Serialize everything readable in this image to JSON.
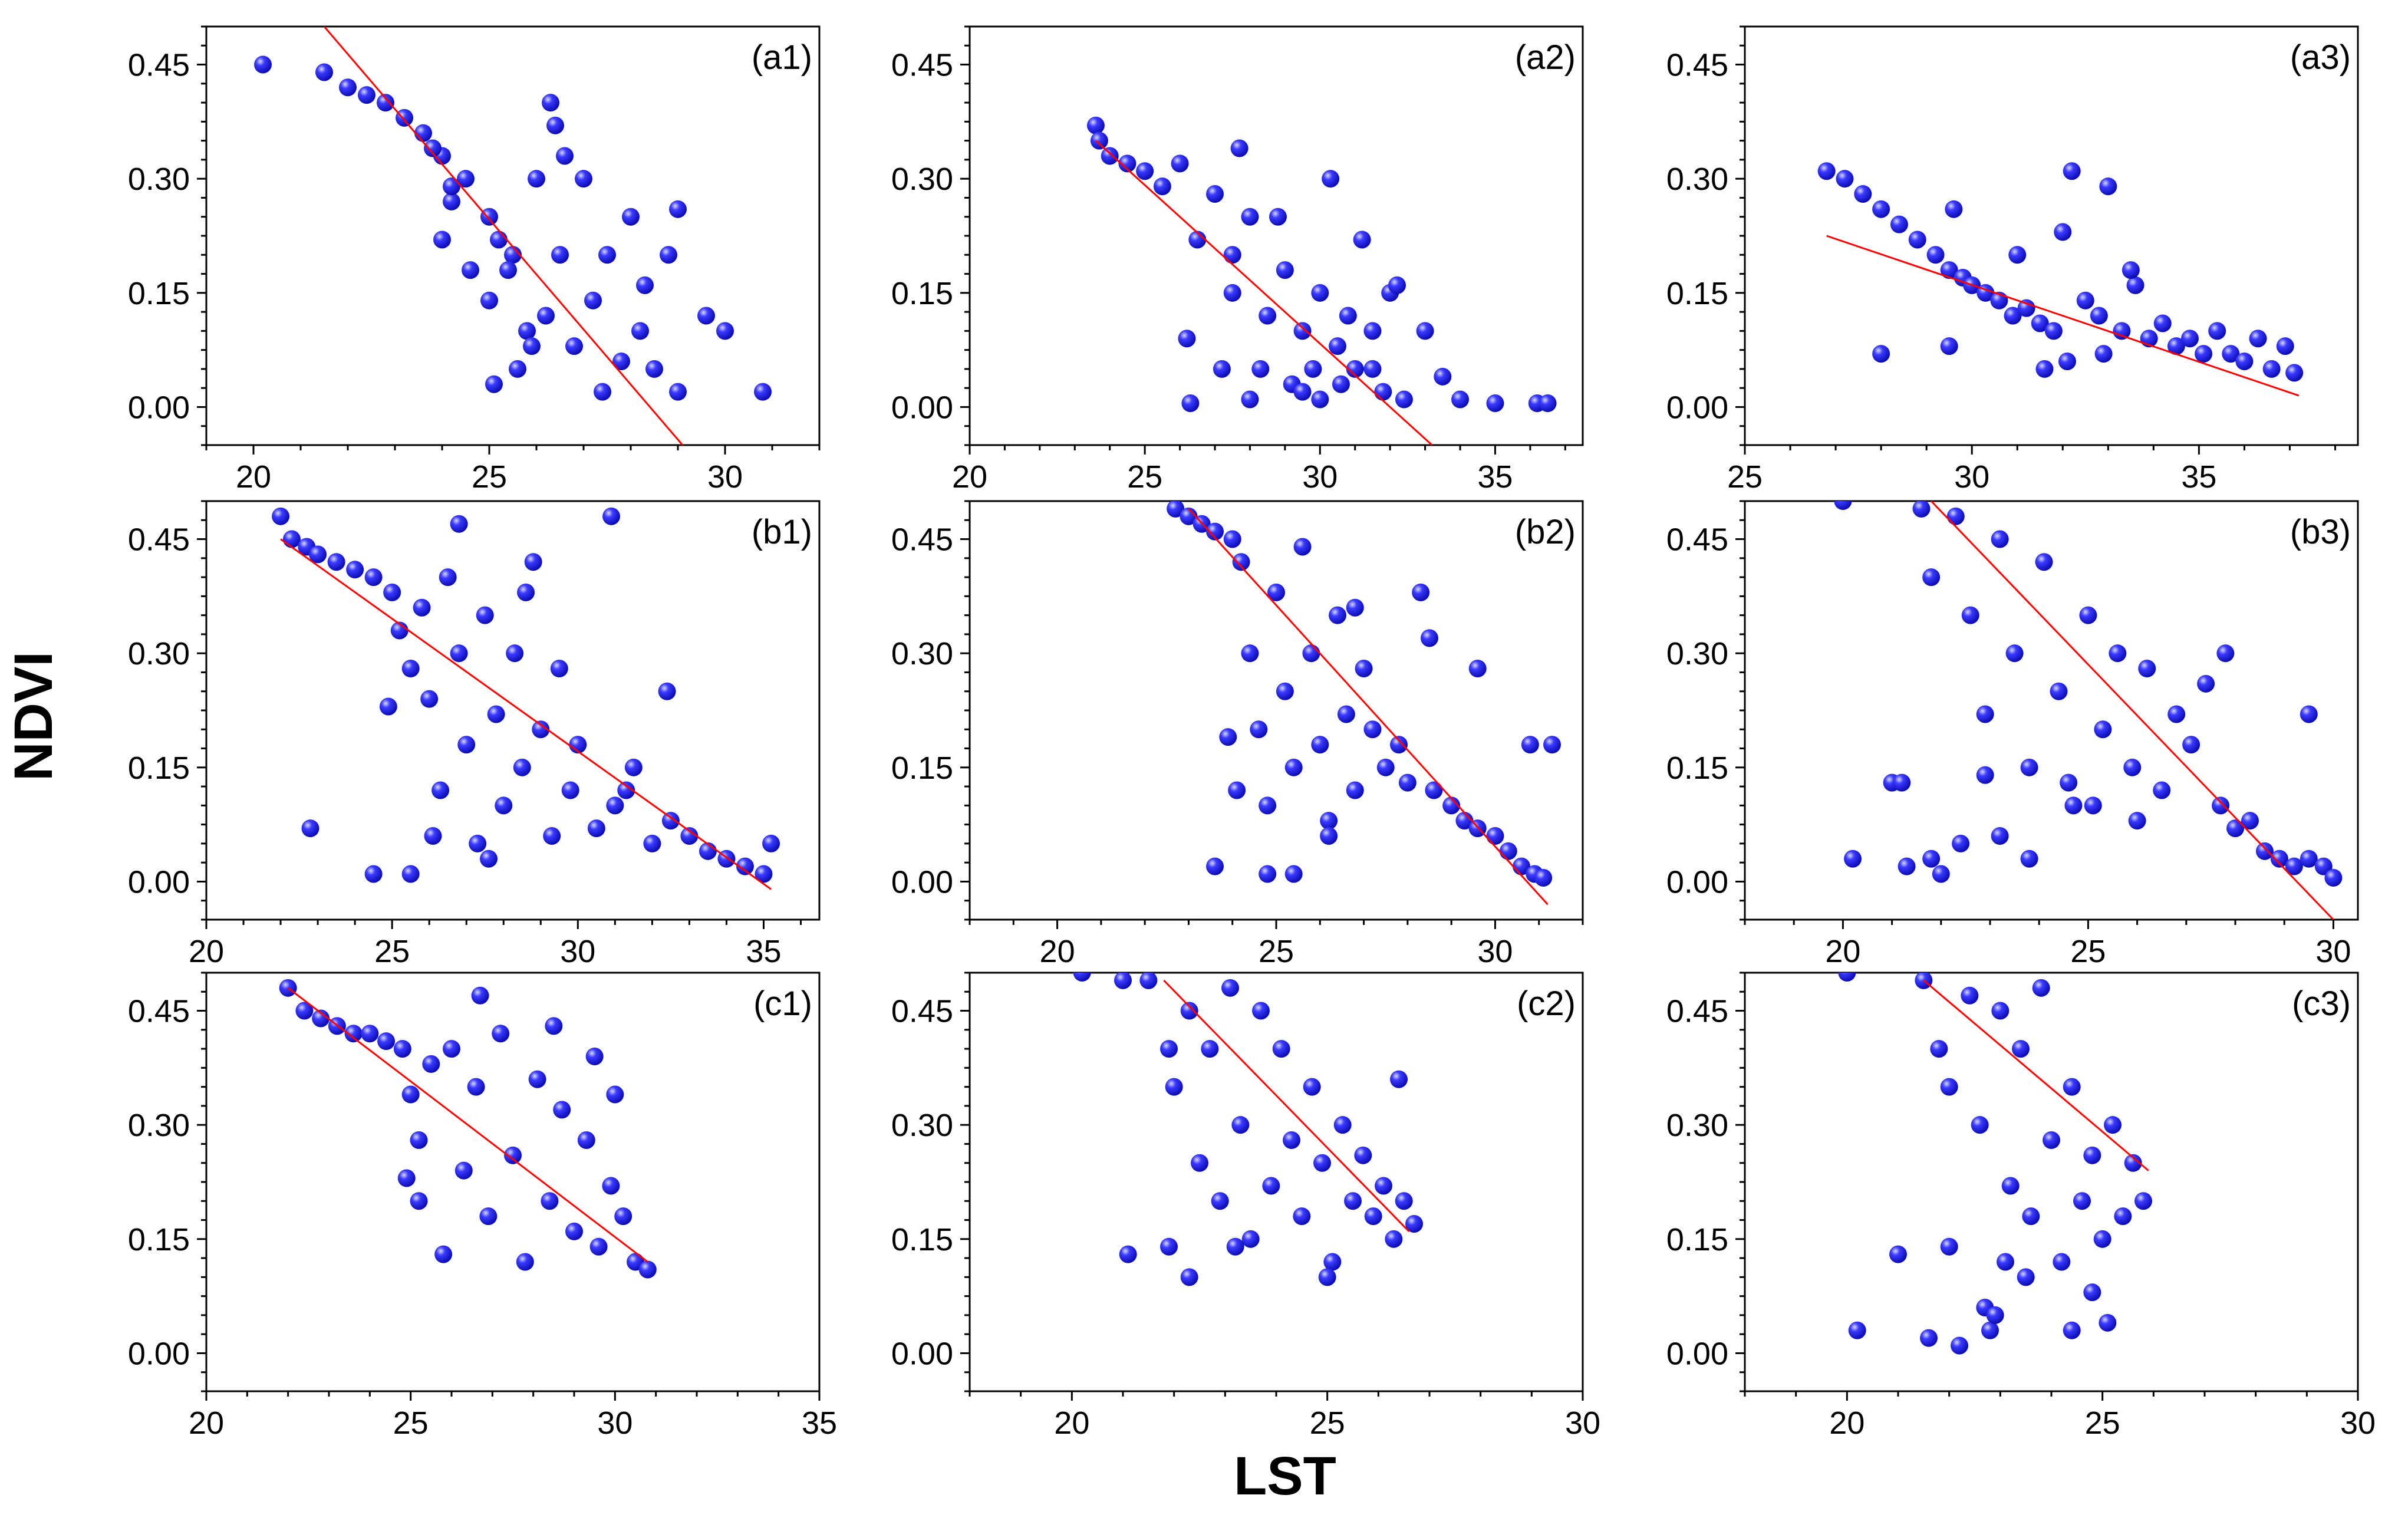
{
  "figure": {
    "ylabel": "NDVI",
    "xlabel": "LST",
    "colors": {
      "points": "#1a1ae6",
      "point_highlight": "#d8d8ff",
      "fit_line": "#ff0000",
      "axes": "#000000"
    }
  },
  "chart_data": [
    {
      "type": "scatter",
      "label": "(a1)",
      "xlim": [
        19,
        32
      ],
      "ylim": [
        -0.05,
        0.5
      ],
      "xticks": [
        20,
        25,
        30
      ],
      "xtick_labels": [
        "20",
        "25",
        "30"
      ],
      "yticks": [
        0,
        0.15,
        0.3,
        0.45
      ],
      "ytick_labels": [
        "0.00",
        "0.15",
        "0.30",
        "0.45"
      ],
      "fit": {
        "x": [
          21.5,
          29.1
        ],
        "y": [
          0.5,
          -0.05
        ]
      },
      "points": {
        "x": [
          20.2,
          21.5,
          22.0,
          22.4,
          22.8,
          23.2,
          23.6,
          24.0,
          24.2,
          24.5,
          24.6,
          25.0,
          25.2,
          25.5,
          25.8,
          26.0,
          26.2,
          26.3,
          26.5,
          26.8,
          27.0,
          27.2,
          27.5,
          27.8,
          28.0,
          28.2,
          28.5,
          28.8,
          29.0,
          29.6,
          30.0,
          30.8,
          24.0,
          24.2,
          25.0,
          25.1,
          25.9,
          26.4,
          23.8,
          25.4,
          25.6,
          26.6,
          27.4,
          28.3,
          29.0
        ],
        "y": [
          0.45,
          0.44,
          0.42,
          0.41,
          0.4,
          0.38,
          0.36,
          0.33,
          0.27,
          0.3,
          0.18,
          0.25,
          0.22,
          0.2,
          0.1,
          0.3,
          0.12,
          0.4,
          0.2,
          0.08,
          0.3,
          0.14,
          0.2,
          0.06,
          0.25,
          0.1,
          0.05,
          0.2,
          0.26,
          0.12,
          0.1,
          0.02,
          0.22,
          0.29,
          0.14,
          0.03,
          0.08,
          0.37,
          0.34,
          0.18,
          0.05,
          0.33,
          0.02,
          0.16,
          0.02
        ]
      }
    },
    {
      "type": "scatter",
      "label": "(a2)",
      "xlim": [
        20,
        37.5
      ],
      "ylim": [
        -0.05,
        0.5
      ],
      "xticks": [
        20,
        25,
        30,
        35
      ],
      "xtick_labels": [
        "20",
        "25",
        "30",
        "35"
      ],
      "yticks": [
        0,
        0.15,
        0.3,
        0.45
      ],
      "ytick_labels": [
        "0.00",
        "0.15",
        "0.30",
        "0.45"
      ],
      "fit": {
        "x": [
          23.6,
          33.2
        ],
        "y": [
          0.35,
          -0.05
        ]
      },
      "points": {
        "x": [
          23.6,
          23.7,
          24.0,
          24.5,
          25.0,
          25.5,
          26.0,
          26.2,
          26.3,
          26.5,
          27.0,
          27.2,
          27.5,
          27.7,
          28.0,
          28.3,
          28.5,
          28.8,
          29.0,
          29.2,
          29.5,
          29.8,
          30.0,
          30.3,
          30.5,
          30.6,
          30.8,
          31.0,
          31.2,
          31.5,
          31.8,
          32.0,
          32.4,
          33.0,
          33.5,
          34.0,
          35.0,
          36.2,
          36.5,
          27.5,
          28.0,
          29.5,
          30.0,
          31.5,
          32.2
        ],
        "y": [
          0.37,
          0.35,
          0.33,
          0.32,
          0.31,
          0.29,
          0.32,
          0.09,
          0.005,
          0.22,
          0.28,
          0.05,
          0.15,
          0.34,
          0.25,
          0.05,
          0.12,
          0.25,
          0.18,
          0.03,
          0.1,
          0.05,
          0.15,
          0.3,
          0.08,
          0.03,
          0.12,
          0.05,
          0.22,
          0.1,
          0.02,
          0.15,
          0.01,
          0.1,
          0.04,
          0.01,
          0.005,
          0.005,
          0.005,
          0.2,
          0.01,
          0.02,
          0.01,
          0.05,
          0.16
        ]
      }
    },
    {
      "type": "scatter",
      "label": "(a3)",
      "xlim": [
        25,
        38.5
      ],
      "ylim": [
        -0.05,
        0.5
      ],
      "xticks": [
        25,
        30,
        35
      ],
      "xtick_labels": [
        "25",
        "30",
        "35"
      ],
      "yticks": [
        0,
        0.15,
        0.3,
        0.45
      ],
      "ytick_labels": [
        "0.00",
        "0.15",
        "0.30",
        "0.45"
      ],
      "fit": {
        "x": [
          26.8,
          37.2
        ],
        "y": [
          0.225,
          0.015
        ]
      },
      "points": {
        "x": [
          26.8,
          27.2,
          27.6,
          28.0,
          28.4,
          28.8,
          29.2,
          29.5,
          29.8,
          30.0,
          30.3,
          30.6,
          30.9,
          31.2,
          31.5,
          31.8,
          32.0,
          32.2,
          32.5,
          32.8,
          33.0,
          33.3,
          33.6,
          33.9,
          34.2,
          34.5,
          34.8,
          35.1,
          35.4,
          35.7,
          36.0,
          36.3,
          36.6,
          36.9,
          37.1,
          28.0,
          29.5,
          29.6,
          31.0,
          32.1,
          32.9,
          33.5,
          31.6
        ],
        "y": [
          0.31,
          0.3,
          0.28,
          0.26,
          0.24,
          0.22,
          0.2,
          0.18,
          0.17,
          0.16,
          0.15,
          0.14,
          0.12,
          0.13,
          0.11,
          0.1,
          0.23,
          0.31,
          0.14,
          0.12,
          0.29,
          0.1,
          0.16,
          0.09,
          0.11,
          0.08,
          0.09,
          0.07,
          0.1,
          0.07,
          0.06,
          0.09,
          0.05,
          0.08,
          0.045,
          0.07,
          0.08,
          0.26,
          0.2,
          0.06,
          0.07,
          0.18,
          0.05
        ]
      }
    },
    {
      "type": "scatter",
      "label": "(b1)",
      "xlim": [
        20,
        36.5
      ],
      "ylim": [
        -0.05,
        0.5
      ],
      "xticks": [
        20,
        25,
        30,
        35
      ],
      "xtick_labels": [
        "20",
        "25",
        "30",
        "35"
      ],
      "yticks": [
        0,
        0.15,
        0.3,
        0.45
      ],
      "ytick_labels": [
        "0.00",
        "0.15",
        "0.30",
        "0.45"
      ],
      "fit": {
        "x": [
          22,
          35.2
        ],
        "y": [
          0.45,
          -0.01
        ]
      },
      "points": {
        "x": [
          22.0,
          22.3,
          22.7,
          23.0,
          23.5,
          24.0,
          24.5,
          25.0,
          25.2,
          25.5,
          25.8,
          26.0,
          26.3,
          26.5,
          26.8,
          27.0,
          27.3,
          27.5,
          27.8,
          28.0,
          28.3,
          28.5,
          28.8,
          29.0,
          29.3,
          29.5,
          29.8,
          30.0,
          30.5,
          31.0,
          31.5,
          32.0,
          32.5,
          33.0,
          33.5,
          34.0,
          34.5,
          35.0,
          35.2,
          22.8,
          24.5,
          24.9,
          25.5,
          26.1,
          26.8,
          27.6,
          28.6,
          30.9,
          31.3,
          32.4
        ],
        "y": [
          0.48,
          0.45,
          0.44,
          0.43,
          0.42,
          0.41,
          0.4,
          0.38,
          0.33,
          0.28,
          0.36,
          0.24,
          0.12,
          0.4,
          0.3,
          0.18,
          0.05,
          0.35,
          0.22,
          0.1,
          0.3,
          0.15,
          0.42,
          0.2,
          0.06,
          0.28,
          0.12,
          0.18,
          0.07,
          0.1,
          0.15,
          0.05,
          0.08,
          0.06,
          0.04,
          0.03,
          0.02,
          0.01,
          0.05,
          0.07,
          0.01,
          0.23,
          0.01,
          0.06,
          0.47,
          0.03,
          0.38,
          0.48,
          0.12,
          0.25
        ]
      }
    },
    {
      "type": "scatter",
      "label": "(b2)",
      "xlim": [
        18,
        32
      ],
      "ylim": [
        -0.05,
        0.5
      ],
      "xticks": [
        20,
        25,
        30
      ],
      "xtick_labels": [
        "20",
        "25",
        "30"
      ],
      "yticks": [
        0,
        0.15,
        0.3,
        0.45
      ],
      "ytick_labels": [
        "0.00",
        "0.15",
        "0.30",
        "0.45"
      ],
      "fit": {
        "x": [
          23.0,
          31.2
        ],
        "y": [
          0.49,
          -0.03
        ]
      },
      "points": {
        "x": [
          22.7,
          23.0,
          23.3,
          23.6,
          24.0,
          24.2,
          24.4,
          24.6,
          24.8,
          25.0,
          25.2,
          25.4,
          25.6,
          25.8,
          26.0,
          26.2,
          26.4,
          26.6,
          26.8,
          27.0,
          27.2,
          27.5,
          27.8,
          28.0,
          28.3,
          28.6,
          29.0,
          29.3,
          29.6,
          30.0,
          30.3,
          30.6,
          30.9,
          31.1,
          23.6,
          24.8,
          25.4,
          26.2,
          26.8,
          28.5,
          29.6,
          30.8,
          31.3,
          23.9,
          24.1
        ],
        "y": [
          0.49,
          0.48,
          0.47,
          0.46,
          0.45,
          0.42,
          0.3,
          0.2,
          0.1,
          0.38,
          0.25,
          0.15,
          0.44,
          0.3,
          0.18,
          0.08,
          0.35,
          0.22,
          0.12,
          0.28,
          0.2,
          0.15,
          0.18,
          0.13,
          0.38,
          0.12,
          0.1,
          0.08,
          0.07,
          0.06,
          0.04,
          0.02,
          0.01,
          0.005,
          0.02,
          0.01,
          0.01,
          0.06,
          0.36,
          0.32,
          0.28,
          0.18,
          0.18,
          0.19,
          0.12
        ]
      }
    },
    {
      "type": "scatter",
      "label": "(b3)",
      "xlim": [
        18,
        30.5
      ],
      "ylim": [
        -0.05,
        0.5
      ],
      "xticks": [
        20,
        25,
        30
      ],
      "xtick_labels": [
        "20",
        "25",
        "30"
      ],
      "yticks": [
        0,
        0.15,
        0.3,
        0.45
      ],
      "ytick_labels": [
        "0.00",
        "0.15",
        "0.30",
        "0.45"
      ],
      "fit": {
        "x": [
          21.8,
          30.0
        ],
        "y": [
          0.5,
          -0.05
        ]
      },
      "points": {
        "x": [
          20.0,
          20.2,
          21.0,
          21.3,
          21.6,
          21.8,
          22.0,
          22.3,
          22.6,
          22.9,
          23.2,
          23.5,
          23.8,
          24.1,
          24.4,
          24.7,
          25.0,
          25.3,
          25.6,
          25.9,
          26.2,
          26.5,
          26.8,
          27.1,
          27.4,
          27.7,
          28.0,
          28.3,
          28.6,
          28.9,
          29.2,
          29.5,
          29.8,
          30.0,
          21.8,
          22.4,
          23.2,
          23.8,
          24.6,
          25.1,
          26.0,
          27.8,
          29.5,
          21.2,
          22.9
        ],
        "y": [
          0.5,
          0.03,
          0.13,
          0.02,
          0.49,
          0.4,
          0.01,
          0.48,
          0.35,
          0.22,
          0.45,
          0.3,
          0.15,
          0.42,
          0.25,
          0.1,
          0.35,
          0.2,
          0.3,
          0.15,
          0.28,
          0.12,
          0.22,
          0.18,
          0.26,
          0.1,
          0.07,
          0.08,
          0.04,
          0.03,
          0.02,
          0.03,
          0.02,
          0.005,
          0.03,
          0.05,
          0.06,
          0.03,
          0.13,
          0.1,
          0.08,
          0.3,
          0.22,
          0.13,
          0.14
        ]
      }
    },
    {
      "type": "scatter",
      "label": "(c1)",
      "xlim": [
        20,
        35
      ],
      "ylim": [
        -0.05,
        0.5
      ],
      "xticks": [
        20,
        25,
        30,
        35
      ],
      "xtick_labels": [
        "20",
        "25",
        "30",
        "35"
      ],
      "yticks": [
        0,
        0.15,
        0.3,
        0.45
      ],
      "ytick_labels": [
        "0.00",
        "0.15",
        "0.30",
        "0.45"
      ],
      "fit": {
        "x": [
          22,
          30.8
        ],
        "y": [
          0.48,
          0.12
        ]
      },
      "points": {
        "x": [
          22.0,
          22.4,
          22.8,
          23.2,
          23.6,
          24.0,
          24.4,
          24.8,
          25.0,
          25.2,
          25.5,
          25.8,
          26.0,
          26.3,
          26.6,
          26.9,
          27.2,
          27.5,
          27.8,
          28.1,
          28.4,
          28.7,
          29.0,
          29.3,
          29.6,
          29.9,
          30.2,
          30.5,
          30.8,
          24.9,
          25.2,
          26.7,
          28.5,
          29.5,
          30.0
        ],
        "y": [
          0.48,
          0.45,
          0.44,
          0.43,
          0.42,
          0.42,
          0.41,
          0.4,
          0.34,
          0.28,
          0.38,
          0.13,
          0.4,
          0.24,
          0.35,
          0.18,
          0.42,
          0.26,
          0.12,
          0.36,
          0.2,
          0.32,
          0.16,
          0.28,
          0.14,
          0.22,
          0.18,
          0.12,
          0.11,
          0.23,
          0.2,
          0.47,
          0.43,
          0.39,
          0.34
        ]
      }
    },
    {
      "type": "scatter",
      "label": "(c2)",
      "xlim": [
        18,
        30
      ],
      "ylim": [
        -0.05,
        0.5
      ],
      "xticks": [
        20,
        25,
        30
      ],
      "xtick_labels": [
        "20",
        "25",
        "30"
      ],
      "yticks": [
        0,
        0.15,
        0.3,
        0.45
      ],
      "ytick_labels": [
        "0.00",
        "0.15",
        "0.30",
        "0.45"
      ],
      "fit": {
        "x": [
          21.8,
          26.6
        ],
        "y": [
          0.49,
          0.16
        ]
      },
      "points": {
        "x": [
          20.2,
          21.0,
          21.1,
          21.5,
          21.9,
          22.0,
          22.3,
          22.5,
          22.7,
          22.9,
          23.1,
          23.3,
          23.5,
          23.7,
          23.9,
          24.1,
          24.3,
          24.5,
          24.7,
          24.9,
          25.1,
          25.3,
          25.5,
          25.7,
          25.9,
          26.1,
          26.3,
          26.5,
          26.7,
          22.3,
          23.2,
          25.0,
          26.4,
          21.9
        ],
        "y": [
          0.5,
          0.49,
          0.13,
          0.49,
          0.4,
          0.35,
          0.45,
          0.25,
          0.4,
          0.2,
          0.48,
          0.3,
          0.15,
          0.45,
          0.22,
          0.4,
          0.28,
          0.18,
          0.35,
          0.25,
          0.12,
          0.3,
          0.2,
          0.26,
          0.18,
          0.22,
          0.15,
          0.2,
          0.17,
          0.1,
          0.14,
          0.1,
          0.36,
          0.14
        ]
      }
    },
    {
      "type": "scatter",
      "label": "(c3)",
      "xlim": [
        18,
        30
      ],
      "ylim": [
        -0.05,
        0.5
      ],
      "xticks": [
        20,
        25,
        30
      ],
      "xtick_labels": [
        "20",
        "25",
        "30"
      ],
      "yticks": [
        0,
        0.15,
        0.3,
        0.45
      ],
      "ytick_labels": [
        "0.00",
        "0.15",
        "0.30",
        "0.45"
      ],
      "fit": {
        "x": [
          21.5,
          25.9
        ],
        "y": [
          0.49,
          0.24
        ]
      },
      "points": {
        "x": [
          20.0,
          20.2,
          21.0,
          21.5,
          21.8,
          22.0,
          22.2,
          22.4,
          22.6,
          22.8,
          23.0,
          23.2,
          23.4,
          23.6,
          23.8,
          24.0,
          24.2,
          24.4,
          24.6,
          24.8,
          25.0,
          25.2,
          25.4,
          25.6,
          25.8,
          21.6,
          22.0,
          22.7,
          23.1,
          24.4,
          24.8,
          25.1,
          22.9,
          23.5
        ],
        "y": [
          0.5,
          0.03,
          0.13,
          0.49,
          0.4,
          0.35,
          0.01,
          0.47,
          0.3,
          0.03,
          0.45,
          0.22,
          0.4,
          0.18,
          0.48,
          0.28,
          0.12,
          0.35,
          0.2,
          0.26,
          0.15,
          0.3,
          0.18,
          0.25,
          0.2,
          0.02,
          0.14,
          0.06,
          0.12,
          0.03,
          0.08,
          0.04,
          0.05,
          0.1
        ]
      }
    }
  ]
}
